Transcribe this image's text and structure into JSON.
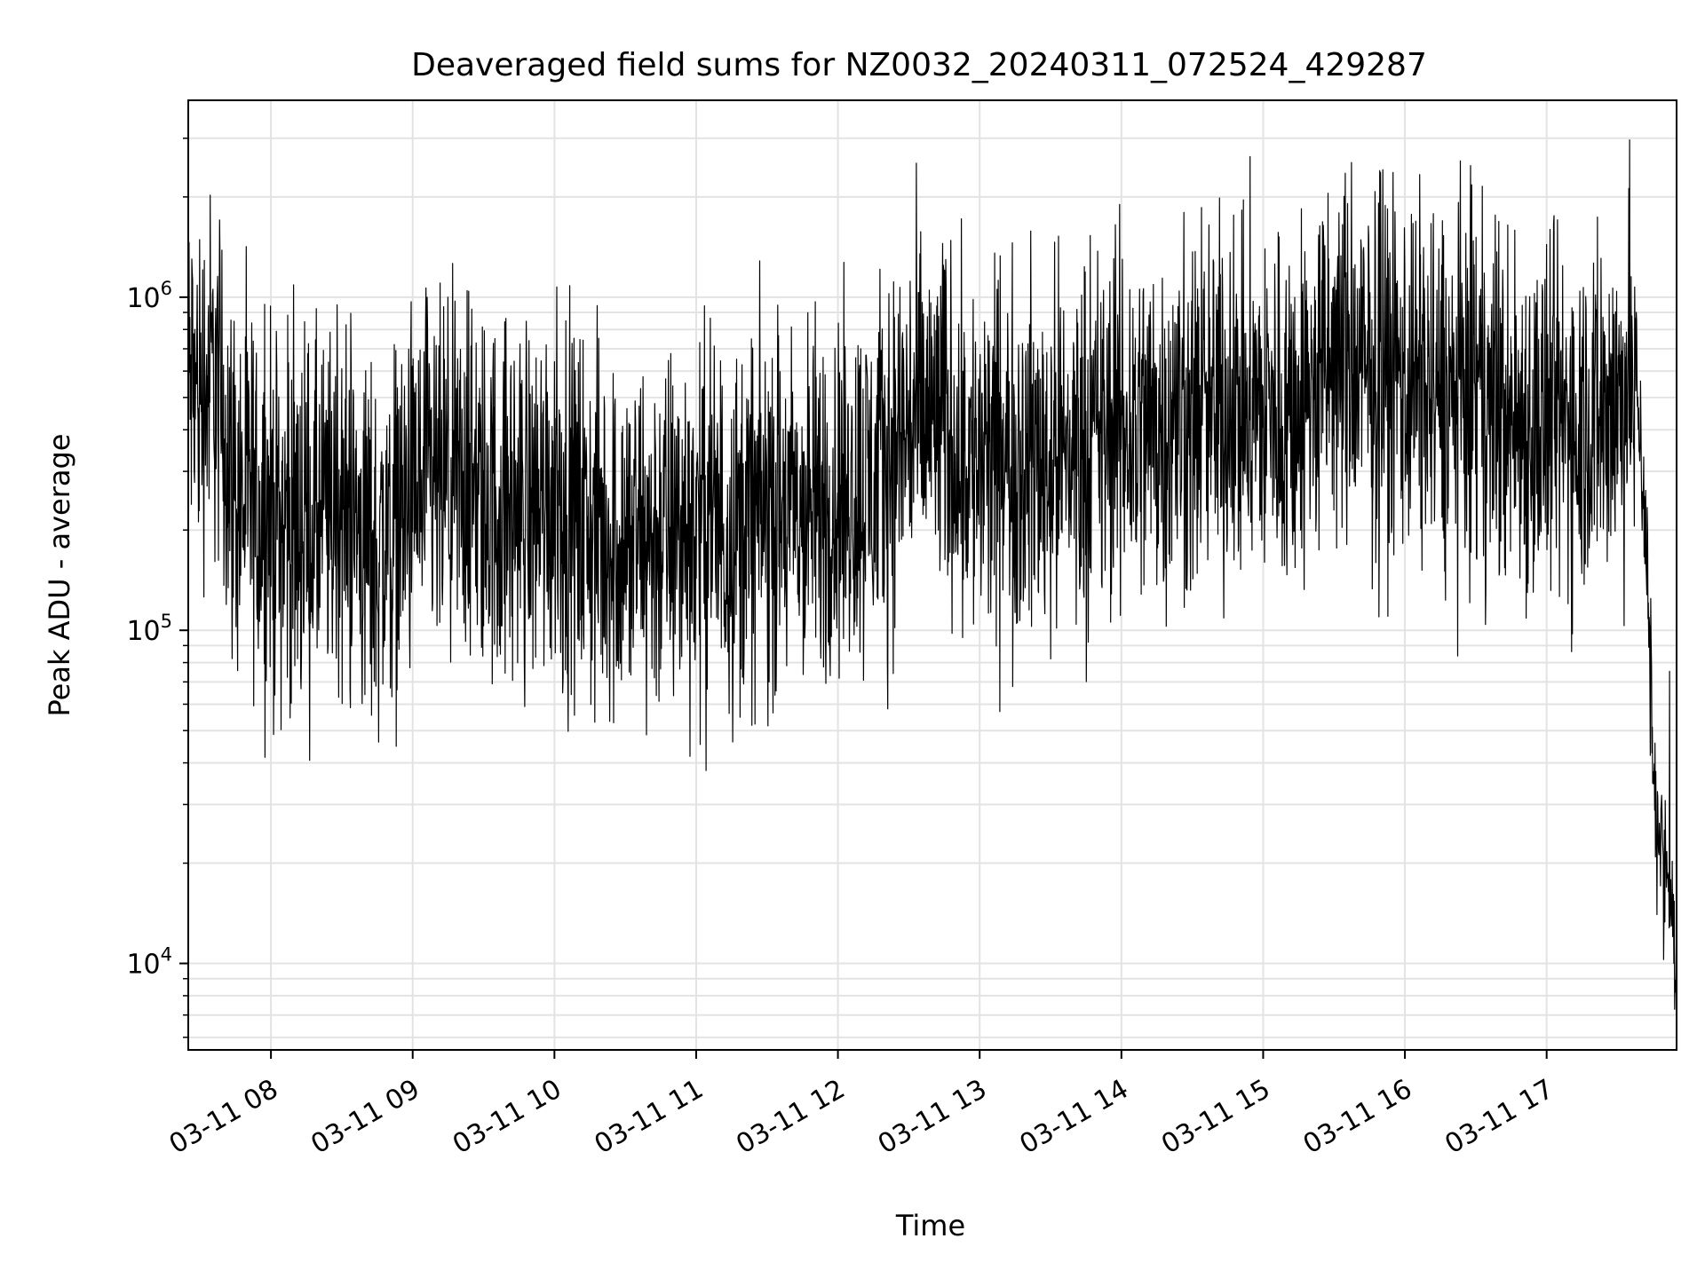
{
  "chart_data": {
    "type": "line",
    "title": "Deaveraged field sums for NZ0032_20240311_072524_429287",
    "xlabel": "Time",
    "ylabel": "Peak ADU - average",
    "yscale": "log",
    "ylim": [
      5500,
      3900000
    ],
    "xlim": [
      "03-11 07:25",
      "03-11 17:55"
    ],
    "x_tick_labels": [
      "03-11 08",
      "03-11 09",
      "03-11 10",
      "03-11 11",
      "03-11 12",
      "03-11 13",
      "03-11 14",
      "03-11 15",
      "03-11 16",
      "03-11 17"
    ],
    "y_tick_labels": [
      {
        "base": "10",
        "exp": "4",
        "value": 10000
      },
      {
        "base": "10",
        "exp": "5",
        "value": 100000
      },
      {
        "base": "10",
        "exp": "6",
        "value": 1000000
      }
    ],
    "grid": true,
    "line_color": "#000000",
    "series": [
      {
        "x": [
          "03-11 07:25",
          "03-11 07:30",
          "03-11 07:36",
          "03-11 07:45",
          "03-11 08:00",
          "03-11 08:15",
          "03-11 08:30",
          "03-11 08:45",
          "03-11 09:00",
          "03-11 09:15",
          "03-11 09:30",
          "03-11 09:45",
          "03-11 10:00",
          "03-11 10:15",
          "03-11 10:30",
          "03-11 10:45",
          "03-11 11:00",
          "03-11 11:15",
          "03-11 11:30",
          "03-11 11:45",
          "03-11 12:00",
          "03-11 12:15",
          "03-11 12:30",
          "03-11 12:45",
          "03-11 13:00",
          "03-11 13:15",
          "03-11 13:30",
          "03-11 13:45",
          "03-11 14:00",
          "03-11 14:15",
          "03-11 14:30",
          "03-11 14:45",
          "03-11 15:00",
          "03-11 15:15",
          "03-11 15:30",
          "03-11 15:45",
          "03-11 16:00",
          "03-11 16:15",
          "03-11 16:30",
          "03-11 16:45",
          "03-11 17:00",
          "03-11 17:15",
          "03-11 17:30",
          "03-11 17:38",
          "03-11 17:42",
          "03-11 17:45",
          "03-11 17:48",
          "03-11 17:52",
          "03-11 17:55"
        ],
        "y": [
          550000,
          520000,
          600000,
          260000,
          220000,
          200000,
          230000,
          170000,
          250000,
          260000,
          240000,
          230000,
          260000,
          200000,
          180000,
          190000,
          210000,
          200000,
          230000,
          220000,
          250000,
          280000,
          420000,
          420000,
          300000,
          330000,
          330000,
          360000,
          400000,
          420000,
          430000,
          480000,
          450000,
          460000,
          650000,
          560000,
          600000,
          500000,
          520000,
          430000,
          410000,
          440000,
          480000,
          600000,
          200000,
          40000,
          22000,
          18000,
          9000
        ]
      }
    ]
  }
}
